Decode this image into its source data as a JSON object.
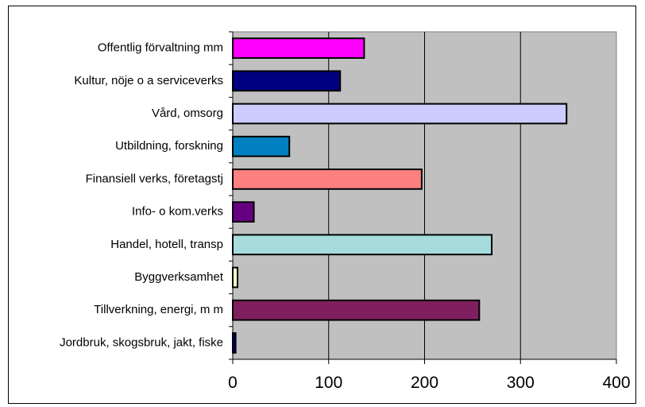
{
  "chart_data": {
    "type": "bar",
    "orientation": "horizontal",
    "title": "",
    "xlabel": "",
    "ylabel": "",
    "categories": [
      "Jordbruk, skogsbruk, jakt, fiske",
      "Tillverkning, energi, m m",
      "Byggverksamhet",
      "Handel, hotell, transp",
      "Info- o kom.verks",
      "Finansiell verks, företagstj",
      "Utbildning, forskning",
      "Vård, omsorg",
      "Kultur, nöje o a serviceverks",
      "Offentlig förvaltning mm"
    ],
    "values": [
      3,
      257,
      5,
      270,
      22,
      197,
      59,
      348,
      112,
      137
    ],
    "colors": [
      "#000080",
      "#7f1f5f",
      "#ffffcc",
      "#a6dcdc",
      "#660080",
      "#ff8080",
      "#0080c0",
      "#ccccff",
      "#000080",
      "#ff00ff"
    ],
    "xlim": [
      0,
      400
    ],
    "xticks": [
      0,
      100,
      200,
      300,
      400
    ],
    "grid": true,
    "plot_background": "#c0c0c0",
    "legend": "none"
  }
}
